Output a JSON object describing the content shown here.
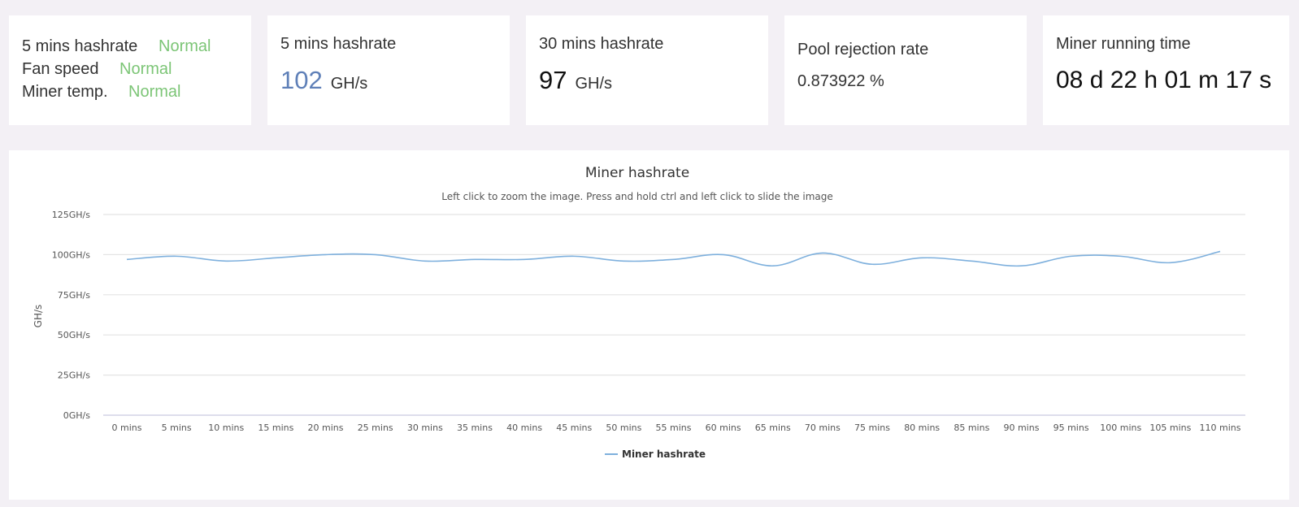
{
  "status_card": {
    "rows": [
      {
        "label": "5 mins hashrate",
        "value": "Normal"
      },
      {
        "label": "Fan speed",
        "value": "Normal"
      },
      {
        "label": "Miner temp.",
        "value": "Normal"
      }
    ],
    "value_color": "#7cc576"
  },
  "hashrate_5m": {
    "title": "5 mins hashrate",
    "value": "102",
    "unit": "GH/s",
    "value_color": "#5f80b8"
  },
  "hashrate_30m": {
    "title": "30 mins hashrate",
    "value": "97",
    "unit": "GH/s"
  },
  "pool_rejection": {
    "title": "Pool rejection rate",
    "value": "0.873922 %"
  },
  "running_time": {
    "title": "Miner running time",
    "value": "08 d 22 h 01 m 17 s"
  },
  "chart_data": {
    "type": "line",
    "title": "Miner hashrate",
    "subtitle": "Left click to zoom the image. Press and hold ctrl and left click to slide the image",
    "ylabel": "GH/s",
    "xlabel": "",
    "categories": [
      "0 mins",
      "5 mins",
      "10 mins",
      "15 mins",
      "20 mins",
      "25 mins",
      "30 mins",
      "35 mins",
      "40 mins",
      "45 mins",
      "50 mins",
      "55 mins",
      "60 mins",
      "65 mins",
      "70 mins",
      "75 mins",
      "80 mins",
      "85 mins",
      "90 mins",
      "95 mins",
      "100 mins",
      "105 mins",
      "110 mins"
    ],
    "y_ticks": [
      "0GH/s",
      "25GH/s",
      "50GH/s",
      "75GH/s",
      "100GH/s",
      "125GH/s"
    ],
    "ylim": [
      0,
      125
    ],
    "grid": true,
    "legend_position": "bottom-center",
    "series": [
      {
        "name": "Miner hashrate",
        "color": "#7eb0dd",
        "values": [
          97,
          99,
          96,
          98,
          100,
          100,
          96,
          97,
          97,
          99,
          96,
          97,
          100,
          93,
          101,
          94,
          98,
          96,
          93,
          99,
          99,
          95,
          102
        ]
      }
    ]
  }
}
